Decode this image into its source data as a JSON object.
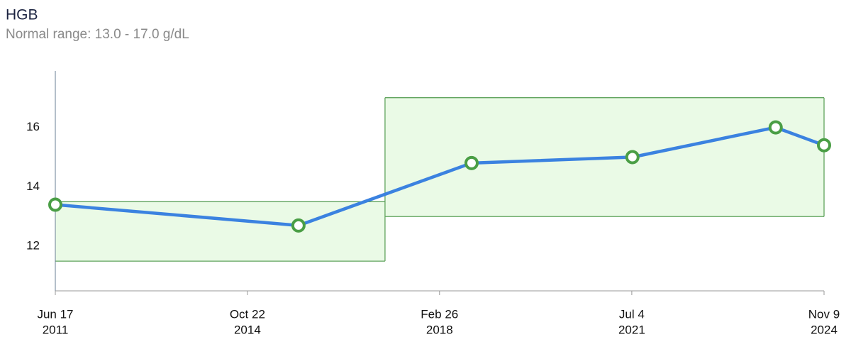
{
  "chart_data": {
    "type": "line",
    "title": "HGB",
    "subtitle": "Normal range: 13.0 - 17.0 g/dL",
    "x": [
      "2011-06-17",
      "2015-09-12",
      "2018-09-18",
      "2021-07-08",
      "2024-01-06",
      "2024-11-09"
    ],
    "values": [
      13.4,
      12.7,
      14.8,
      15.0,
      16.0,
      15.4
    ],
    "color": "#3b82e0",
    "marker_color": "#4a9e45",
    "normal_ranges": [
      {
        "start": "2011-06-17",
        "end": "2017-03-16",
        "low": 11.5,
        "high": 13.5
      },
      {
        "start": "2017-03-16",
        "end": "2024-11-09",
        "low": 13.0,
        "high": 17.0
      }
    ],
    "range_fill": "#eafaE6",
    "range_stroke": "#5fa35c",
    "xlim": [
      "2011-06-17",
      "2024-11-09"
    ],
    "xticks": [
      {
        "value": "2011-06-17",
        "label": [
          "Jun 17",
          "2011"
        ]
      },
      {
        "value": "2014-10-22",
        "label": [
          "Oct 22",
          "2014"
        ]
      },
      {
        "value": "2018-02-26",
        "label": [
          "Feb 26",
          "2018"
        ]
      },
      {
        "value": "2021-07-04",
        "label": [
          "Jul 4",
          "2021"
        ]
      },
      {
        "value": "2024-11-09",
        "label": [
          "Nov 9",
          "2024"
        ]
      }
    ],
    "ylim": [
      10.5,
      17.9
    ],
    "yticks": [
      12,
      14,
      16
    ],
    "grid": false
  }
}
